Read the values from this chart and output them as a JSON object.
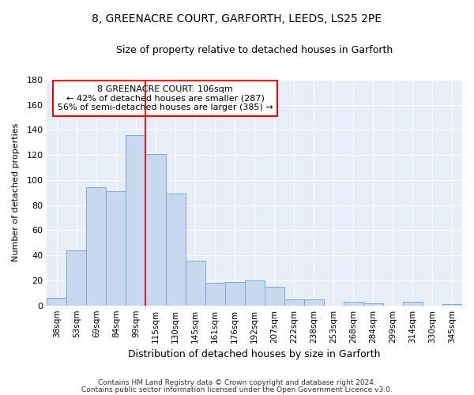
{
  "title1": "8, GREENACRE COURT, GARFORTH, LEEDS, LS25 2PE",
  "title2": "Size of property relative to detached houses in Garforth",
  "xlabel": "Distribution of detached houses by size in Garforth",
  "ylabel": "Number of detached properties",
  "categories": [
    "38sqm",
    "53sqm",
    "69sqm",
    "84sqm",
    "99sqm",
    "115sqm",
    "130sqm",
    "145sqm",
    "161sqm",
    "176sqm",
    "192sqm",
    "207sqm",
    "222sqm",
    "238sqm",
    "253sqm",
    "268sqm",
    "284sqm",
    "299sqm",
    "314sqm",
    "330sqm",
    "345sqm"
  ],
  "values": [
    6,
    44,
    94,
    91,
    136,
    121,
    89,
    36,
    18,
    19,
    20,
    15,
    5,
    5,
    0,
    3,
    2,
    0,
    3,
    0,
    1
  ],
  "bar_color": "#c8d8ee",
  "bar_edge_color": "#7aaad0",
  "ylim": [
    0,
    180
  ],
  "yticks": [
    0,
    20,
    40,
    60,
    80,
    100,
    120,
    140,
    160,
    180
  ],
  "property_label": "8 GREENACRE COURT: 106sqm",
  "annotation_line1": "← 42% of detached houses are smaller (287)",
  "annotation_line2": "56% of semi-detached houses are larger (385) →",
  "vline_position": 4.5,
  "footnote1": "Contains HM Land Registry data © Crown copyright and database right 2024.",
  "footnote2": "Contains public sector information licensed under the Open Government Licence v3.0.",
  "background_color": "#ffffff",
  "plot_bg_color": "#e8eef8",
  "grid_color": "#ffffff"
}
